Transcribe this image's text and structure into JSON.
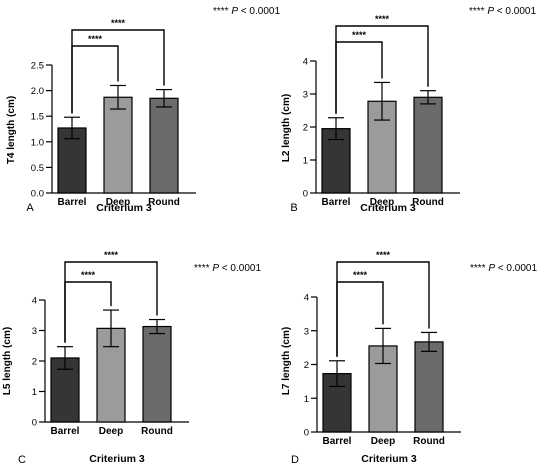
{
  "significance_label": "****",
  "pvalue_text": {
    "stars": "****",
    "p": "P",
    "rest": " < 0.0001"
  },
  "colors": {
    "barrel": "#353535",
    "deep": "#9b9b9b",
    "round": "#6b6b6b",
    "axis": "#000000"
  },
  "chart_data": [
    {
      "type": "bar",
      "panel_label": "A",
      "xlabel": "Criterium 3",
      "ylabel": "T4 length (cm)",
      "categories": [
        "Barrel",
        "Deep",
        "Round"
      ],
      "values": [
        1.27,
        1.87,
        1.85
      ],
      "errors": [
        0.21,
        0.23,
        0.17
      ],
      "ylim": [
        0,
        2.5
      ],
      "yticks": [
        "0.0",
        "0.5",
        "1.0",
        "1.5",
        "2.0",
        "2.5"
      ],
      "comparisons": [
        {
          "from": "Barrel",
          "to": "Deep",
          "label": "****"
        },
        {
          "from": "Barrel",
          "to": "Round",
          "label": "****"
        }
      ]
    },
    {
      "type": "bar",
      "panel_label": "B",
      "xlabel": "Criterium 3",
      "ylabel": "L2 length (cm)",
      "categories": [
        "Barrel",
        "Deep",
        "Round"
      ],
      "values": [
        1.95,
        2.78,
        2.9
      ],
      "errors": [
        0.33,
        0.57,
        0.2
      ],
      "ylim": [
        0,
        4
      ],
      "yticks": [
        "0",
        "1",
        "2",
        "3",
        "4"
      ],
      "comparisons": [
        {
          "from": "Barrel",
          "to": "Deep",
          "label": "****"
        },
        {
          "from": "Barrel",
          "to": "Round",
          "label": "****"
        }
      ]
    },
    {
      "type": "bar",
      "panel_label": "C",
      "xlabel": "Criterium 3",
      "ylabel": "L5 length (cm)",
      "categories": [
        "Barrel",
        "Deep",
        "Round"
      ],
      "values": [
        2.1,
        3.07,
        3.13
      ],
      "errors": [
        0.37,
        0.6,
        0.23
      ],
      "ylim": [
        0,
        4
      ],
      "yticks": [
        "0",
        "1",
        "2",
        "3",
        "4"
      ],
      "comparisons": [
        {
          "from": "Barrel",
          "to": "Deep",
          "label": "****"
        },
        {
          "from": "Barrel",
          "to": "Round",
          "label": "****"
        }
      ]
    },
    {
      "type": "bar",
      "panel_label": "D",
      "xlabel": "Criterium 3",
      "ylabel": "L7 length (cm)",
      "categories": [
        "Barrel",
        "Deep",
        "Round"
      ],
      "values": [
        1.73,
        2.55,
        2.67
      ],
      "errors": [
        0.38,
        0.52,
        0.28
      ],
      "ylim": [
        0,
        4
      ],
      "yticks": [
        "0",
        "1",
        "2",
        "3",
        "4"
      ],
      "comparisons": [
        {
          "from": "Barrel",
          "to": "Deep",
          "label": "****"
        },
        {
          "from": "Barrel",
          "to": "Round",
          "label": "****"
        }
      ]
    }
  ]
}
